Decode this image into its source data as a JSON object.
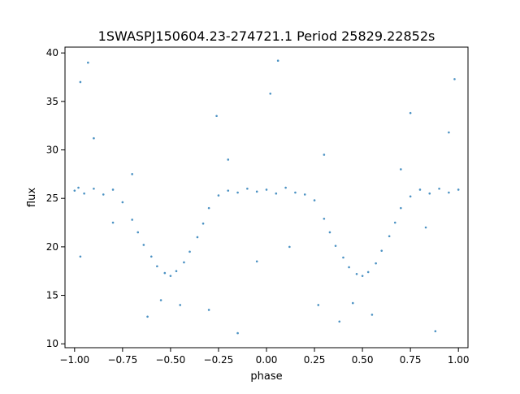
{
  "chart_data": {
    "type": "scatter",
    "title": "1SWASPJ150604.23-274721.1 Period 25829.22852s",
    "xlabel": "phase",
    "ylabel": "flux",
    "xlim": [
      -1.05,
      1.05
    ],
    "ylim": [
      9.6,
      40.6
    ],
    "xticks": [
      -1.0,
      -0.75,
      -0.5,
      -0.25,
      0.0,
      0.25,
      0.5,
      0.75,
      1.0
    ],
    "xtick_labels": [
      "−1.00",
      "−0.75",
      "−0.50",
      "−0.25",
      "0.00",
      "0.25",
      "0.50",
      "0.75",
      "1.00"
    ],
    "yticks": [
      10,
      15,
      20,
      25,
      30,
      35,
      40
    ],
    "ytick_labels": [
      "10",
      "15",
      "20",
      "25",
      "30",
      "35",
      "40"
    ],
    "grid": false,
    "legend": "none",
    "marker_color": "#1f77b4",
    "series": [
      {
        "values": [
          {
            "x": -1.0,
            "y": 25.8
          },
          {
            "x": -0.98,
            "y": 26.1
          },
          {
            "x": -0.95,
            "y": 25.5
          },
          {
            "x": -0.9,
            "y": 26.0
          },
          {
            "x": -0.85,
            "y": 25.4
          },
          {
            "x": -0.8,
            "y": 25.9
          },
          {
            "x": -0.75,
            "y": 24.6
          },
          {
            "x": -0.7,
            "y": 22.8
          },
          {
            "x": -0.67,
            "y": 21.5
          },
          {
            "x": -0.64,
            "y": 20.2
          },
          {
            "x": -0.6,
            "y": 19.0
          },
          {
            "x": -0.57,
            "y": 18.0
          },
          {
            "x": -0.53,
            "y": 17.3
          },
          {
            "x": -0.5,
            "y": 17.0
          },
          {
            "x": -0.47,
            "y": 17.5
          },
          {
            "x": -0.43,
            "y": 18.4
          },
          {
            "x": -0.4,
            "y": 19.5
          },
          {
            "x": -0.36,
            "y": 21.0
          },
          {
            "x": -0.33,
            "y": 22.4
          },
          {
            "x": -0.3,
            "y": 24.0
          },
          {
            "x": -0.25,
            "y": 25.3
          },
          {
            "x": -0.2,
            "y": 25.8
          },
          {
            "x": -0.15,
            "y": 25.6
          },
          {
            "x": -0.1,
            "y": 26.0
          },
          {
            "x": -0.05,
            "y": 25.7
          },
          {
            "x": 0.0,
            "y": 25.9
          },
          {
            "x": 0.05,
            "y": 25.5
          },
          {
            "x": 0.1,
            "y": 26.1
          },
          {
            "x": 0.15,
            "y": 25.6
          },
          {
            "x": 0.2,
            "y": 25.4
          },
          {
            "x": 0.25,
            "y": 24.8
          },
          {
            "x": 0.3,
            "y": 22.9
          },
          {
            "x": 0.33,
            "y": 21.5
          },
          {
            "x": 0.36,
            "y": 20.1
          },
          {
            "x": 0.4,
            "y": 18.9
          },
          {
            "x": 0.43,
            "y": 17.9
          },
          {
            "x": 0.47,
            "y": 17.2
          },
          {
            "x": 0.5,
            "y": 17.0
          },
          {
            "x": 0.53,
            "y": 17.4
          },
          {
            "x": 0.57,
            "y": 18.3
          },
          {
            "x": 0.6,
            "y": 19.6
          },
          {
            "x": 0.64,
            "y": 21.1
          },
          {
            "x": 0.67,
            "y": 22.5
          },
          {
            "x": 0.7,
            "y": 24.0
          },
          {
            "x": 0.75,
            "y": 25.2
          },
          {
            "x": 0.8,
            "y": 25.9
          },
          {
            "x": 0.85,
            "y": 25.5
          },
          {
            "x": 0.9,
            "y": 26.0
          },
          {
            "x": 0.95,
            "y": 25.6
          },
          {
            "x": 1.0,
            "y": 25.9
          },
          {
            "x": -0.55,
            "y": 14.5
          },
          {
            "x": -0.62,
            "y": 12.8
          },
          {
            "x": -0.45,
            "y": 14.0
          },
          {
            "x": 0.45,
            "y": 14.2
          },
          {
            "x": 0.55,
            "y": 13.0
          },
          {
            "x": 0.38,
            "y": 12.3
          },
          {
            "x": -0.97,
            "y": 37.0
          },
          {
            "x": -0.93,
            "y": 39.0
          },
          {
            "x": 0.02,
            "y": 35.8
          },
          {
            "x": 0.06,
            "y": 39.2
          },
          {
            "x": 0.98,
            "y": 37.3
          },
          {
            "x": -0.9,
            "y": 31.2
          },
          {
            "x": 0.95,
            "y": 31.8
          },
          {
            "x": -0.26,
            "y": 33.5
          },
          {
            "x": 0.75,
            "y": 33.8
          },
          {
            "x": -0.97,
            "y": 19.0
          },
          {
            "x": 0.88,
            "y": 11.3
          },
          {
            "x": -0.15,
            "y": 11.1
          },
          {
            "x": -0.3,
            "y": 13.5
          },
          {
            "x": 0.27,
            "y": 14.0
          },
          {
            "x": -0.7,
            "y": 27.5
          },
          {
            "x": 0.7,
            "y": 28.0
          },
          {
            "x": -0.2,
            "y": 29.0
          },
          {
            "x": 0.3,
            "y": 29.5
          },
          {
            "x": -0.8,
            "y": 22.5
          },
          {
            "x": 0.83,
            "y": 22.0
          },
          {
            "x": -0.05,
            "y": 18.5
          },
          {
            "x": 0.12,
            "y": 20.0
          }
        ]
      }
    ]
  }
}
